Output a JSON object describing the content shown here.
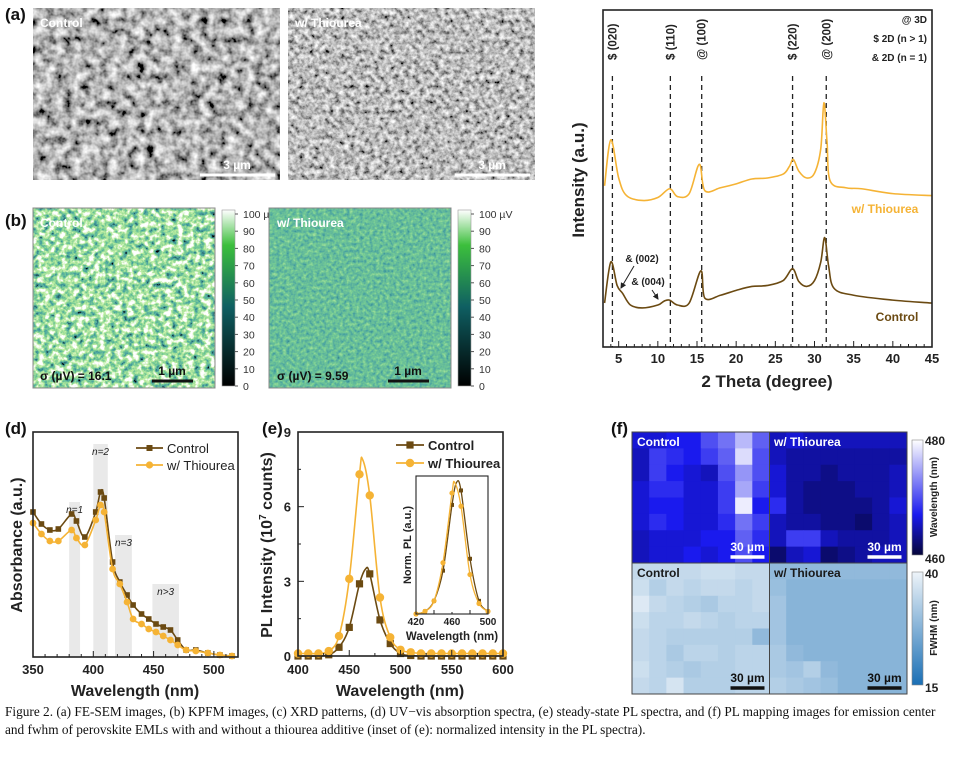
{
  "panel_labels": {
    "a": "(a)",
    "b": "(b)",
    "d": "(d)",
    "e": "(e)",
    "f": "(f)"
  },
  "sem": {
    "control_label": "Control",
    "thiourea_label": "w/ Thiourea",
    "scale_bar": "3 µm"
  },
  "kpfm": {
    "control_label": "Control",
    "thiourea_label": "w/ Thiourea",
    "scale_bar": "1 µm",
    "control_sigma": "σ (µV) = 16.1",
    "thiourea_sigma": "σ (µV) = 9.59",
    "colorbar_ticks": [
      "100 µV",
      "90",
      "80",
      "70",
      "60",
      "50",
      "40",
      "30",
      "20",
      "10",
      "0"
    ],
    "colormap": [
      "#000000",
      "#0f5f62",
      "#3cbf3c",
      "#ffffff"
    ]
  },
  "colors": {
    "control": "#6b4a12",
    "thiourea": "#f5b335"
  },
  "chart_data": [
    {
      "id": "xrd",
      "type": "line",
      "xlabel": "2 Theta (degree)",
      "ylabel": "Intensity (a.u.)",
      "xlim": [
        3,
        45
      ],
      "ylim": [
        0,
        345
      ],
      "xticks": [
        "5",
        "10",
        "15",
        "20",
        "25",
        "30",
        "35",
        "40",
        "45"
      ],
      "legend_notes": [
        "@ 3D",
        "$ 2D (n > 1)",
        "& 2D (n = 1)"
      ],
      "reference_lines": [
        {
          "x": 4.2,
          "label": "$ (020)"
        },
        {
          "x": 11.6,
          "label": "$ (110)"
        },
        {
          "x": 15.6,
          "label": "@ (100)"
        },
        {
          "x": 27.2,
          "label": "$ (220)"
        },
        {
          "x": 31.5,
          "label": "@ (200)"
        }
      ],
      "annotations": [
        {
          "text": "& (002)",
          "x": 5.0
        },
        {
          "text": "& (004)",
          "x": 10.3
        }
      ],
      "series": [
        {
          "name": "w/ Thiourea",
          "x": [
            3.2,
            4,
            5,
            6,
            8,
            10,
            11.5,
            12.5,
            14,
            15.3,
            16,
            18,
            20,
            22,
            24,
            26,
            26.8,
            27.3,
            28,
            29,
            30,
            30.8,
            31.2,
            31.6,
            32,
            34,
            36,
            40,
            45
          ],
          "y": [
            165,
            212,
            173,
            155,
            150,
            153,
            162,
            154,
            157,
            187,
            160,
            163,
            167,
            172,
            173,
            177,
            185,
            192,
            180,
            173,
            178,
            203,
            250,
            210,
            170,
            163,
            162,
            157,
            155
          ]
        },
        {
          "name": "Control",
          "x": [
            3.2,
            4,
            4.8,
            5.5,
            6.5,
            8,
            10,
            10.8,
            11.5,
            12.5,
            14,
            15.5,
            16,
            18,
            20,
            22,
            24,
            26,
            27.2,
            28,
            29,
            30,
            30.8,
            31.3,
            31.8,
            32.5,
            35,
            40,
            45
          ],
          "y": [
            45,
            87,
            63,
            55,
            43,
            40,
            43,
            47,
            48,
            43,
            45,
            78,
            50,
            53,
            58,
            62,
            63,
            68,
            80,
            67,
            62,
            68,
            87,
            112,
            83,
            60,
            53,
            48,
            45
          ]
        }
      ]
    },
    {
      "id": "absorption",
      "type": "line",
      "xlabel": "Wavelength (nm)",
      "ylabel": "Absorbance (a.u.)",
      "xlim": [
        350,
        520
      ],
      "ylim": [
        0,
        225
      ],
      "xticks": [
        "350",
        "400",
        "450",
        "500"
      ],
      "bands": [
        {
          "label": "n=1",
          "from": 380,
          "to": 389,
          "top": 155
        },
        {
          "label": "n=2",
          "from": 400,
          "to": 412,
          "top": 213
        },
        {
          "label": "n=3",
          "from": 418,
          "to": 432,
          "top": 122
        },
        {
          "label": "n>3",
          "from": 449,
          "to": 471,
          "top": 73
        }
      ],
      "legend": "top-right",
      "series": [
        {
          "name": "Control",
          "marker": "square",
          "x": [
            350,
            357,
            364,
            371,
            382,
            386,
            393,
            402,
            406,
            409,
            416,
            422,
            428,
            433,
            440,
            446,
            452,
            458,
            464,
            470,
            477,
            485,
            495,
            505,
            515
          ],
          "y": [
            145,
            133,
            127,
            128,
            143,
            136,
            120,
            145,
            165,
            159,
            95,
            75,
            62,
            52,
            43,
            38,
            33,
            30,
            27,
            17,
            7,
            7,
            4,
            2,
            1
          ]
        },
        {
          "name": "w/ Thiourea",
          "marker": "circle",
          "x": [
            350,
            357,
            364,
            371,
            382,
            386,
            393,
            402,
            406,
            409,
            416,
            422,
            428,
            433,
            440,
            446,
            452,
            458,
            464,
            470,
            477,
            485,
            495,
            505,
            515
          ],
          "y": [
            134,
            123,
            116,
            116,
            127,
            119,
            112,
            137,
            152,
            145,
            88,
            73,
            55,
            38,
            33,
            28,
            25,
            21,
            17,
            12,
            7,
            6,
            4,
            2,
            1
          ]
        }
      ]
    },
    {
      "id": "pl",
      "type": "line",
      "xlabel": "Wavelength (nm)",
      "ylabel_parts": [
        "PL Intensity (10",
        "7",
        " counts)"
      ],
      "xlim": [
        400,
        600
      ],
      "ylim": [
        0,
        9
      ],
      "xticks": [
        "400",
        "450",
        "500",
        "550",
        "600"
      ],
      "yticks": [
        "0",
        "3",
        "6",
        "9"
      ],
      "legend": "top-right",
      "series": [
        {
          "name": "Control",
          "marker": "square",
          "x": [
            400,
            410,
            420,
            430,
            440,
            450,
            460,
            466,
            470,
            480,
            490,
            500,
            510,
            520,
            530,
            540,
            550,
            560,
            570,
            580,
            590,
            600
          ],
          "y": [
            0,
            0,
            0,
            0.05,
            0.35,
            1.15,
            2.9,
            3.5,
            3.3,
            1.45,
            0.5,
            0.1,
            0.02,
            0,
            0,
            0,
            0,
            0,
            0,
            0,
            0,
            0
          ]
        },
        {
          "name": "w/ Thiourea",
          "marker": "circle",
          "x": [
            400,
            410,
            420,
            430,
            440,
            450,
            460,
            463,
            470,
            480,
            490,
            500,
            510,
            520,
            530,
            540,
            550,
            560,
            570,
            580,
            590,
            600
          ],
          "y": [
            0.1,
            0.1,
            0.1,
            0.2,
            0.8,
            3.1,
            7.3,
            7.9,
            6.45,
            2.35,
            0.75,
            0.25,
            0.15,
            0.1,
            0.1,
            0.1,
            0.1,
            0.1,
            0.1,
            0.1,
            0.1,
            0.1
          ]
        }
      ]
    },
    {
      "id": "pl-inset",
      "type": "line",
      "xlabel": "Wavelength (nm)",
      "ylabel": "Norm. PL (a.u.)",
      "xlim": [
        420,
        500
      ],
      "ylim": [
        0,
        1.05
      ],
      "xticks": [
        "420",
        "460",
        "500"
      ],
      "series": [
        {
          "name": "Control",
          "marker": "square",
          "x": [
            420,
            430,
            440,
            450,
            460,
            465,
            470,
            480,
            490,
            500
          ],
          "y": [
            0,
            0.02,
            0.1,
            0.33,
            0.83,
            1.0,
            0.94,
            0.42,
            0.1,
            0.02
          ]
        },
        {
          "name": "w/ Thiourea",
          "marker": "circle",
          "x": [
            420,
            430,
            440,
            450,
            460,
            463,
            470,
            480,
            490,
            500
          ],
          "y": [
            0,
            0.02,
            0.1,
            0.39,
            0.92,
            1.0,
            0.82,
            0.3,
            0.08,
            0.02
          ]
        }
      ]
    },
    {
      "id": "pl-map",
      "type": "heatmap",
      "scale_bar": "30 µm",
      "wavelength_colorbar": {
        "title": "Wavelength (nm)",
        "range": [
          460,
          480
        ],
        "min_label": "460",
        "max_label": "480",
        "colors": [
          "#05053a",
          "#1a1aee",
          "#ffffff"
        ]
      },
      "fwhm_colorbar": {
        "title": "FWHM (nm)",
        "range": [
          15,
          40
        ],
        "min_label": "15",
        "max_label": "40",
        "colors": [
          "#1a6fb5",
          "#eef4f9"
        ]
      },
      "maps": [
        {
          "label": "Control",
          "quantity": "wavelength",
          "values": [
            [
              466,
              466,
              467,
              467,
              470,
              472,
              476,
              471
            ],
            [
              465,
              469,
              468,
              467,
              469,
              471,
              478,
              470
            ],
            [
              465,
              469,
              467,
              466,
              465,
              470,
              474,
              470
            ],
            [
              466,
              468,
              468,
              466,
              466,
              469,
              475,
              469
            ],
            [
              466,
              467,
              467,
              466,
              466,
              469,
              479,
              467
            ],
            [
              466,
              468,
              467,
              466,
              466,
              468,
              472,
              469
            ],
            [
              465,
              466,
              466,
              466,
              467,
              467,
              471,
              468
            ],
            [
              465,
              466,
              466,
              467,
              466,
              467,
              470,
              467
            ]
          ]
        },
        {
          "label": "w/ Thiourea",
          "quantity": "wavelength",
          "values": [
            [
              465,
              466,
              465,
              465,
              465,
              465,
              465,
              465
            ],
            [
              465,
              464,
              464,
              464,
              464,
              464,
              464,
              464
            ],
            [
              466,
              464,
              464,
              463,
              464,
              464,
              464,
              465
            ],
            [
              466,
              464,
              463,
              463,
              463,
              464,
              464,
              465
            ],
            [
              468,
              464,
              463,
              463,
              463,
              463,
              464,
              466
            ],
            [
              465,
              464,
              464,
              463,
              463,
              462,
              464,
              465
            ],
            [
              465,
              469,
              469,
              465,
              464,
              464,
              464,
              465
            ],
            [
              462,
              465,
              466,
              462,
              463,
              464,
              465,
              465
            ]
          ]
        },
        {
          "label": "Control",
          "quantity": "fwhm",
          "values": [
            [
              35,
              35,
              35,
              35,
              36,
              36,
              35,
              35
            ],
            [
              36,
              33,
              35,
              34,
              35,
              35,
              34,
              35
            ],
            [
              38,
              35,
              34,
              33,
              32,
              34,
              34,
              35
            ],
            [
              36,
              34,
              34,
              35,
              34,
              33,
              34,
              34
            ],
            [
              35,
              34,
              33,
              33,
              33,
              33,
              33,
              29
            ],
            [
              35,
              34,
              32,
              34,
              34,
              33,
              34,
              34
            ],
            [
              36,
              34,
              33,
              32,
              33,
              33,
              34,
              34
            ],
            [
              35,
              34,
              37,
              33,
              33,
              33,
              34,
              34
            ]
          ]
        },
        {
          "label": "w/ Thiourea",
          "quantity": "fwhm",
          "values": [
            [
              29,
              29,
              29,
              29,
              29,
              29,
              29,
              29
            ],
            [
              30,
              28,
              28,
              28,
              28,
              28,
              28,
              28
            ],
            [
              31,
              28,
              28,
              28,
              28,
              28,
              28,
              28
            ],
            [
              31,
              28,
              28,
              28,
              28,
              28,
              28,
              28
            ],
            [
              31,
              28,
              28,
              28,
              28,
              28,
              28,
              28
            ],
            [
              32,
              29,
              28,
              28,
              28,
              28,
              28,
              28
            ],
            [
              32,
              31,
              33,
              29,
              28,
              28,
              28,
              28
            ],
            [
              33,
              32,
              31,
              30,
              28,
              28,
              28,
              28
            ]
          ]
        }
      ]
    }
  ],
  "caption": {
    "label": "Figure 2.",
    "text": " (a) FE-SEM images, (b) KPFM images, (c) XRD patterns, (d) UV−vis absorption spectra, (e) steady-state PL spectra, and (f) PL mapping images for emission center and fwhm of perovskite EMLs with and without a thiourea additive (inset of (e): normalized intensity in the PL spectra)."
  }
}
